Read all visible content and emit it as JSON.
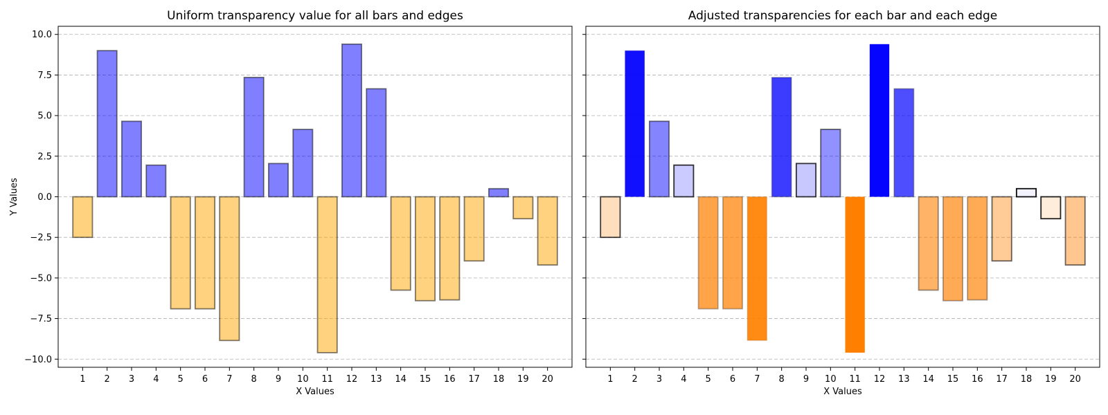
{
  "chart_data": [
    {
      "type": "bar",
      "title": "Uniform transparency value for all bars and edges",
      "xlabel": "X Values",
      "ylabel": "Y Values",
      "categories": [
        "1",
        "2",
        "3",
        "4",
        "5",
        "6",
        "7",
        "8",
        "9",
        "10",
        "11",
        "12",
        "13",
        "14",
        "15",
        "16",
        "17",
        "18",
        "19",
        "20"
      ],
      "values": [
        -2.5,
        9.0,
        4.65,
        1.95,
        -6.9,
        -6.9,
        -8.85,
        7.35,
        2.05,
        4.15,
        -9.6,
        9.4,
        6.65,
        -5.75,
        -6.4,
        -6.35,
        -3.95,
        0.5,
        -1.35,
        -4.2
      ],
      "ylim": [
        -10.5,
        10.5
      ],
      "yticks": [
        -10.0,
        -7.5,
        -5.0,
        -2.5,
        0.0,
        2.5,
        5.0,
        7.5,
        10.0
      ],
      "ytick_labels": [
        "−10.0",
        "−7.5",
        "−5.0",
        "−2.5",
        "0.0",
        "2.5",
        "5.0",
        "7.5",
        "10.0"
      ],
      "grid": "y-dashed",
      "colors": {
        "positive": "#0000ff",
        "negative": "#ffa500",
        "edge": "#000000"
      },
      "bar_alpha": 0.5,
      "edge_alpha": 0.5
    },
    {
      "type": "bar",
      "title": "Adjusted transparencies for each bar and each edge",
      "xlabel": "X Values",
      "ylabel": "",
      "categories": [
        "1",
        "2",
        "3",
        "4",
        "5",
        "6",
        "7",
        "8",
        "9",
        "10",
        "11",
        "12",
        "13",
        "14",
        "15",
        "16",
        "17",
        "18",
        "19",
        "20"
      ],
      "values": [
        -2.5,
        9.0,
        4.65,
        1.95,
        -6.9,
        -6.9,
        -8.85,
        7.35,
        2.05,
        4.15,
        -9.6,
        9.4,
        6.65,
        -5.75,
        -6.4,
        -6.35,
        -3.95,
        0.5,
        -1.35,
        -4.2
      ],
      "ylim": [
        -10.5,
        10.5
      ],
      "yticks": [
        -10.0,
        -7.5,
        -5.0,
        -2.5,
        0.0,
        2.5,
        5.0,
        7.5,
        10.0
      ],
      "shared_y": true,
      "grid": "y-dashed",
      "colors": {
        "positive": "#0000ff",
        "negative": "#ff8000",
        "edge": "#000000"
      },
      "bar_alpha_rule": "abs(value) / max_abs",
      "edge_alpha_rule": "1 - abs(value) / max_abs"
    }
  ]
}
